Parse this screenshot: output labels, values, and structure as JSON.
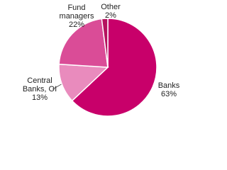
{
  "chart_data": {
    "type": "pie",
    "categories": [
      "Banks",
      "Central Banks, OI",
      "Fund managers",
      "Other"
    ],
    "values": [
      63,
      13,
      22,
      2
    ],
    "value_labels": [
      "63%",
      "13%",
      "22%",
      "2%"
    ],
    "colors": [
      "#c8006a",
      "#e98bbd",
      "#da4c97",
      "#b5125e"
    ]
  }
}
